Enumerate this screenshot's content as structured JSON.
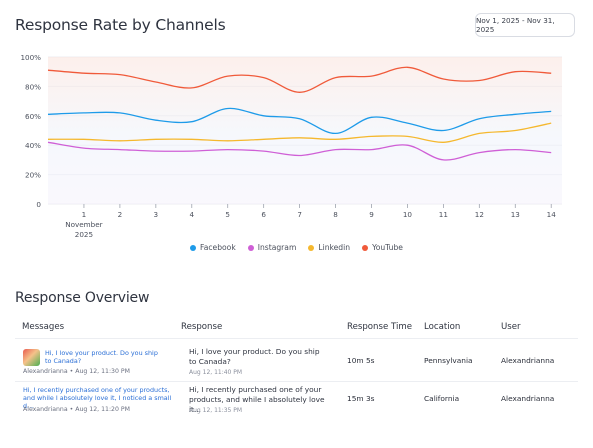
{
  "header": {
    "title": "Response Rate by Channels",
    "date_range": "Nov 1, 2025 - Nov 31, 2025"
  },
  "chart_data": {
    "type": "line",
    "title": "Response Rate by Channels",
    "x": [
      0,
      1,
      2,
      3,
      4,
      5,
      6,
      7,
      8,
      9,
      10,
      11,
      12,
      13,
      14
    ],
    "x_tick_labels": [
      "1",
      "2",
      "3",
      "4",
      "5",
      "6",
      "7",
      "8",
      "9",
      "10",
      "11",
      "12",
      "13",
      "14"
    ],
    "x_first_tick_sublabel": [
      "November",
      "2025"
    ],
    "y_tick_labels": [
      "0",
      "20%",
      "40%",
      "60%",
      "80%",
      "100%"
    ],
    "ylim": [
      0,
      100
    ],
    "xlim": [
      0,
      14.3
    ],
    "grid": true,
    "legend_position": "bottom",
    "series": [
      {
        "name": "Facebook",
        "color": "#1e9be9",
        "values": [
          61,
          62,
          62,
          57,
          56,
          65,
          60,
          58,
          48,
          59,
          55,
          50,
          58,
          61,
          63
        ]
      },
      {
        "name": "Instagram",
        "color": "#cf5fd6",
        "values": [
          42,
          38,
          37,
          36,
          36,
          37,
          36,
          33,
          37,
          37,
          40,
          30,
          35,
          37,
          35
        ]
      },
      {
        "name": "Linkedin",
        "color": "#f5b82e",
        "values": [
          44,
          44,
          43,
          44,
          44,
          43,
          44,
          45,
          44,
          46,
          46,
          42,
          48,
          50,
          55
        ]
      },
      {
        "name": "YouTube",
        "color": "#f05a3a",
        "values": [
          91,
          89,
          88,
          83,
          79,
          87,
          86,
          76,
          86,
          87,
          93,
          85,
          84,
          90,
          89
        ]
      }
    ]
  },
  "overview": {
    "title": "Response Overview",
    "columns": [
      "Messages",
      "Response",
      "Response Time",
      "Location",
      "User"
    ],
    "rows": [
      {
        "message": "Hi, I love your product. Do you ship to Canada?",
        "message_meta": "Alexandrianna • Aug 12, 11:30 PM",
        "response": "Hi, I love your product. Do you ship to Canada?",
        "response_meta": "Aug 12, 11:40 PM",
        "response_time": "10m 5s",
        "location": "Pennsylvania",
        "user": "Alexandrianna"
      },
      {
        "message": "Hi, I recently purchased one of your products, and while I absolutely love it, I noticed a small d...",
        "message_meta": "Alexandrianna • Aug 12, 11:20 PM",
        "response": "Hi, I recently purchased one of your products, and while I absolutely love it...",
        "response_meta": "Aug 12, 11:35 PM",
        "response_time": "15m 3s",
        "location": "California",
        "user": "Alexandrianna"
      }
    ]
  }
}
